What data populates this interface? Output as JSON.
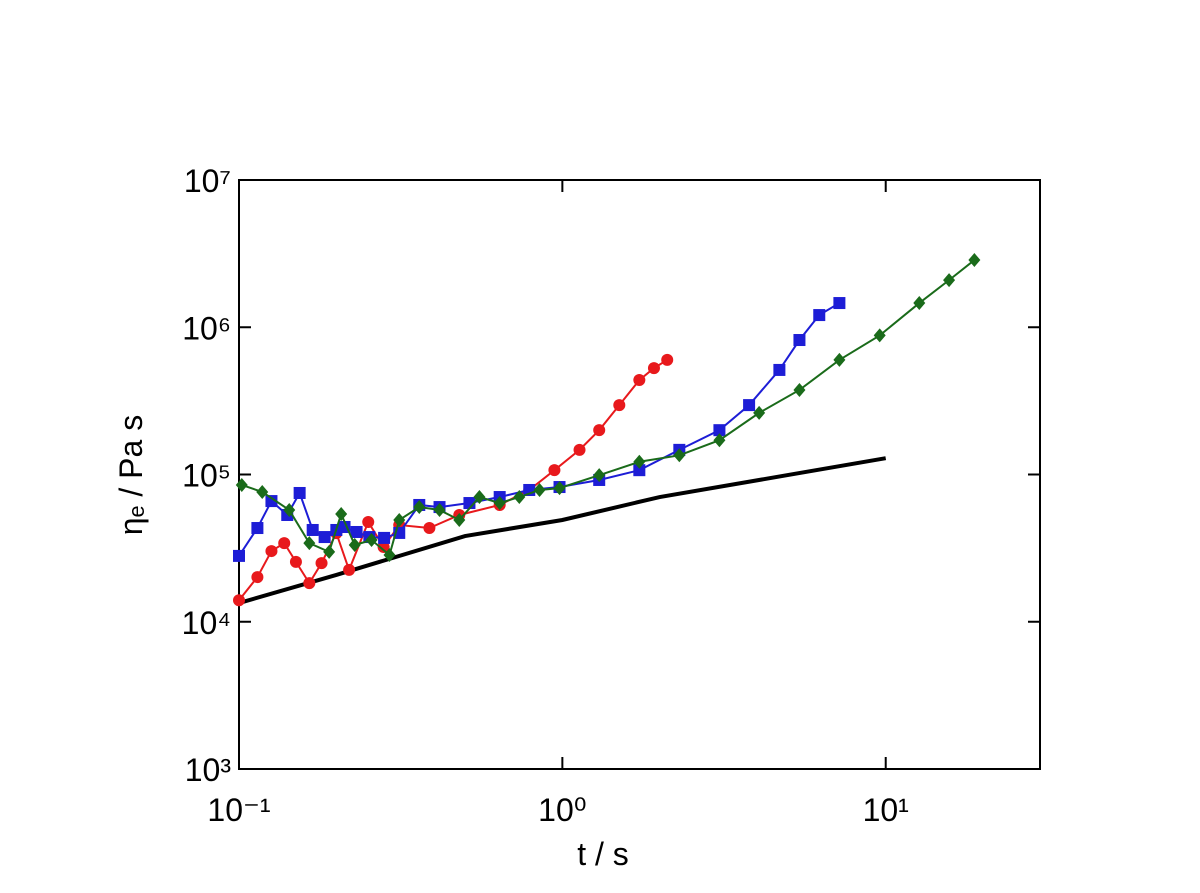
{
  "chart_data": {
    "type": "line",
    "x_label": "t / s",
    "y_label": "ηₑ / Pa s",
    "log_x": true,
    "log_y": true,
    "xlim": [
      0.1,
      30
    ],
    "ylim": [
      1000,
      10000000
    ],
    "xticks": [
      {
        "value": 0.1,
        "label": "10⁻¹"
      },
      {
        "value": 1,
        "label": "10⁰"
      },
      {
        "value": 10,
        "label": "10¹"
      }
    ],
    "yticks": [
      {
        "value": 1000,
        "label": "10³"
      },
      {
        "value": 10000,
        "label": "10⁴"
      },
      {
        "value": 100000,
        "label": "10⁵"
      },
      {
        "value": 1000000,
        "label": "10⁶"
      },
      {
        "value": 10000000,
        "label": "10⁷"
      }
    ],
    "series": [
      {
        "color": "#000000",
        "marker": null,
        "x": [
          0.1,
          0.2,
          0.5,
          1,
          2,
          5,
          10
        ],
        "values": [
          13400,
          20800,
          38200,
          49100,
          70300,
          99300,
          129000
        ]
      },
      {
        "color": "#e8191c",
        "marker": "circle",
        "x": [
          0.1,
          0.114,
          0.126,
          0.138,
          0.15,
          0.165,
          0.18,
          0.2,
          0.219,
          0.251,
          0.28,
          0.313,
          0.388,
          0.48,
          0.64,
          0.79,
          0.945,
          1.13,
          1.3,
          1.5,
          1.73,
          1.92,
          2.11
        ],
        "values": [
          14000,
          20100,
          30200,
          34200,
          25500,
          18300,
          25000,
          40000,
          22500,
          47600,
          32200,
          45400,
          43300,
          53100,
          62100,
          78500,
          107000,
          147000,
          200000,
          296000,
          438000,
          528000,
          600000
        ]
      },
      {
        "color": "#1d1dd6",
        "marker": "square",
        "x": [
          0.1,
          0.114,
          0.126,
          0.141,
          0.154,
          0.169,
          0.184,
          0.2,
          0.212,
          0.231,
          0.253,
          0.281,
          0.313,
          0.361,
          0.417,
          0.516,
          0.64,
          0.79,
          0.98,
          1.3,
          1.73,
          2.3,
          3.06,
          3.78,
          4.69,
          5.41,
          6.23,
          7.19
        ],
        "values": [
          28000,
          43300,
          66000,
          53100,
          74900,
          42000,
          37600,
          42000,
          44000,
          40700,
          37600,
          37100,
          40100,
          62100,
          60100,
          64000,
          70300,
          78500,
          82200,
          91800,
          107000,
          147000,
          200000,
          296000,
          513000,
          819000,
          1210000,
          1460000
        ]
      },
      {
        "color": "#1a6b1a",
        "marker": "diamond",
        "x": [
          0.102,
          0.118,
          0.143,
          0.165,
          0.19,
          0.207,
          0.228,
          0.257,
          0.292,
          0.313,
          0.361,
          0.417,
          0.48,
          0.554,
          0.64,
          0.736,
          0.85,
          0.98,
          1.3,
          1.73,
          2.3,
          3.06,
          4.06,
          5.41,
          7.19,
          9.58,
          12.7,
          15.7,
          18.8
        ],
        "values": [
          84900,
          76100,
          57400,
          34200,
          29800,
          53900,
          33200,
          35900,
          28400,
          49100,
          60100,
          57400,
          49100,
          70300,
          64000,
          70300,
          78500,
          80800,
          99000,
          122000,
          135000,
          171000,
          262000,
          375000,
          600000,
          880000,
          1460000,
          2090000,
          2860000
        ]
      }
    ]
  }
}
